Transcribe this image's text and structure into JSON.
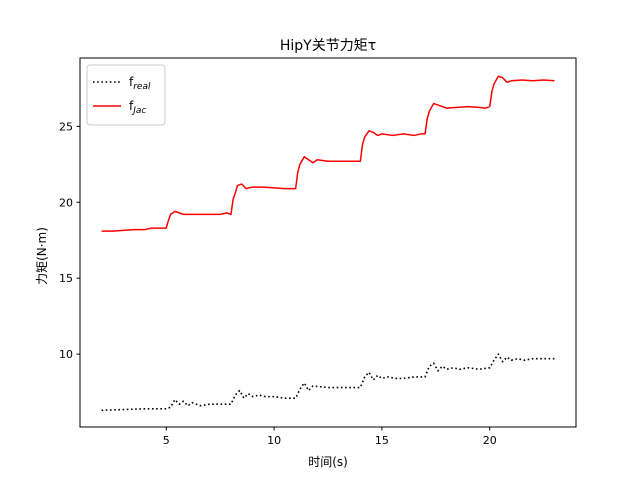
{
  "chart_data": {
    "type": "line",
    "title": "HipY关节力矩τ",
    "xlabel": "时间(s)",
    "ylabel": "力矩(N·m)",
    "xlim": [
      1.0,
      24.0
    ],
    "ylim": [
      5.2,
      29.5
    ],
    "xticks": [
      5,
      10,
      15,
      20
    ],
    "yticks": [
      10,
      15,
      20,
      25
    ],
    "grid": false,
    "legend_position": "upper-left",
    "series": [
      {
        "name": "f",
        "name_subscript": "real",
        "color": "#000000",
        "style": "dotted",
        "x": [
          2.0,
          3.0,
          4.0,
          5.0,
          5.2,
          5.4,
          5.6,
          5.8,
          6.0,
          6.2,
          6.4,
          6.6,
          7.0,
          7.5,
          8.0,
          8.2,
          8.4,
          8.6,
          8.8,
          9.0,
          9.3,
          9.6,
          10.0,
          10.5,
          11.0,
          11.2,
          11.4,
          11.6,
          11.8,
          12.5,
          13.0,
          13.5,
          14.0,
          14.2,
          14.4,
          14.6,
          14.8,
          15.0,
          15.3,
          15.6,
          16.0,
          16.5,
          17.0,
          17.2,
          17.4,
          17.6,
          17.8,
          18.0,
          18.3,
          18.6,
          19.0,
          19.5,
          20.0,
          20.2,
          20.4,
          20.6,
          20.8,
          21.0,
          21.3,
          21.6,
          22.0,
          22.5,
          23.0
        ],
        "y": [
          6.3,
          6.35,
          6.4,
          6.4,
          6.5,
          7.0,
          6.7,
          6.9,
          6.6,
          6.8,
          6.7,
          6.6,
          6.7,
          6.7,
          6.7,
          7.3,
          7.6,
          7.1,
          7.4,
          7.2,
          7.3,
          7.2,
          7.2,
          7.1,
          7.1,
          7.7,
          8.1,
          7.6,
          7.9,
          7.8,
          7.8,
          7.8,
          7.8,
          8.5,
          8.8,
          8.3,
          8.6,
          8.4,
          8.5,
          8.4,
          8.4,
          8.5,
          8.5,
          9.2,
          9.4,
          8.9,
          9.2,
          9.0,
          9.1,
          9.0,
          9.1,
          9.0,
          9.1,
          9.6,
          10.0,
          9.5,
          9.8,
          9.6,
          9.7,
          9.6,
          9.7,
          9.7,
          9.7
        ]
      },
      {
        "name": "f",
        "name_subscript": "Jac",
        "color": "#ff0000",
        "style": "solid",
        "x": [
          2.0,
          2.5,
          3.0,
          3.5,
          4.0,
          4.3,
          4.6,
          5.0,
          5.1,
          5.2,
          5.4,
          5.6,
          5.8,
          6.0,
          6.5,
          7.0,
          7.5,
          7.8,
          8.0,
          8.1,
          8.2,
          8.3,
          8.5,
          8.7,
          9.0,
          9.5,
          10.0,
          10.5,
          10.8,
          11.0,
          11.1,
          11.2,
          11.4,
          11.6,
          11.8,
          12.0,
          12.5,
          13.0,
          13.5,
          13.8,
          14.0,
          14.1,
          14.2,
          14.4,
          14.6,
          14.8,
          15.0,
          15.5,
          16.0,
          16.5,
          16.8,
          17.0,
          17.1,
          17.2,
          17.4,
          17.6,
          17.8,
          18.0,
          18.5,
          19.0,
          19.5,
          19.8,
          20.0,
          20.1,
          20.2,
          20.4,
          20.6,
          20.8,
          21.0,
          21.5,
          22.0,
          22.5,
          23.0
        ],
        "y": [
          18.1,
          18.1,
          18.15,
          18.2,
          18.2,
          18.3,
          18.3,
          18.3,
          18.8,
          19.2,
          19.4,
          19.3,
          19.2,
          19.2,
          19.2,
          19.2,
          19.2,
          19.3,
          19.2,
          20.2,
          20.6,
          21.1,
          21.2,
          20.9,
          21.0,
          21.0,
          20.95,
          20.9,
          20.9,
          20.9,
          22.0,
          22.5,
          23.0,
          22.8,
          22.6,
          22.8,
          22.7,
          22.7,
          22.7,
          22.7,
          22.7,
          23.8,
          24.3,
          24.7,
          24.6,
          24.4,
          24.5,
          24.4,
          24.5,
          24.4,
          24.5,
          24.5,
          25.5,
          26.0,
          26.5,
          26.4,
          26.3,
          26.2,
          26.25,
          26.3,
          26.25,
          26.2,
          26.3,
          27.3,
          27.8,
          28.3,
          28.2,
          27.9,
          28.0,
          28.05,
          28.0,
          28.05,
          28.0
        ]
      }
    ]
  }
}
